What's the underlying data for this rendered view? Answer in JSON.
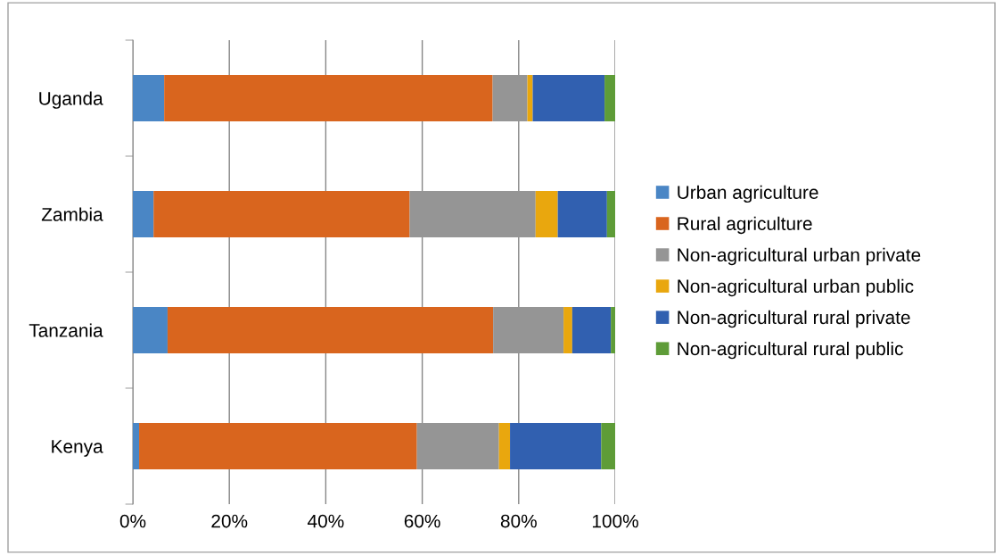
{
  "chart_data": {
    "type": "bar",
    "orientation": "horizontal",
    "stacked": true,
    "categories": [
      "Uganda",
      "Zambia",
      "Tanzania",
      "Kenya"
    ],
    "series": [
      {
        "name": "Urban agriculture",
        "color": "#4a86c5",
        "values": [
          6.5,
          4.3,
          7.2,
          1.3
        ]
      },
      {
        "name": "Rural agriculture",
        "color": "#d9651e",
        "values": [
          68.1,
          53.1,
          67.5,
          57.6
        ]
      },
      {
        "name": "Non-agricultural urban private",
        "color": "#959595",
        "values": [
          7.2,
          26.1,
          14.6,
          17.0
        ]
      },
      {
        "name": "Non-agricultural urban public",
        "color": "#e9a70e",
        "values": [
          1.1,
          4.6,
          1.8,
          2.3
        ]
      },
      {
        "name": "Non-agricultural rural private",
        "color": "#3160b0",
        "values": [
          14.9,
          10.2,
          8.0,
          18.9
        ]
      },
      {
        "name": "Non-agricultural rural public",
        "color": "#5e9c38",
        "values": [
          2.2,
          1.7,
          0.9,
          2.9
        ]
      }
    ],
    "xlim": [
      0,
      100
    ],
    "xticks": [
      {
        "value": 0,
        "label": "0%"
      },
      {
        "value": 20,
        "label": "20%"
      },
      {
        "value": 40,
        "label": "40%"
      },
      {
        "value": 60,
        "label": "60%"
      },
      {
        "value": 80,
        "label": "80%"
      },
      {
        "value": 100,
        "label": "100%"
      }
    ],
    "grid": "x",
    "legend": "right"
  }
}
